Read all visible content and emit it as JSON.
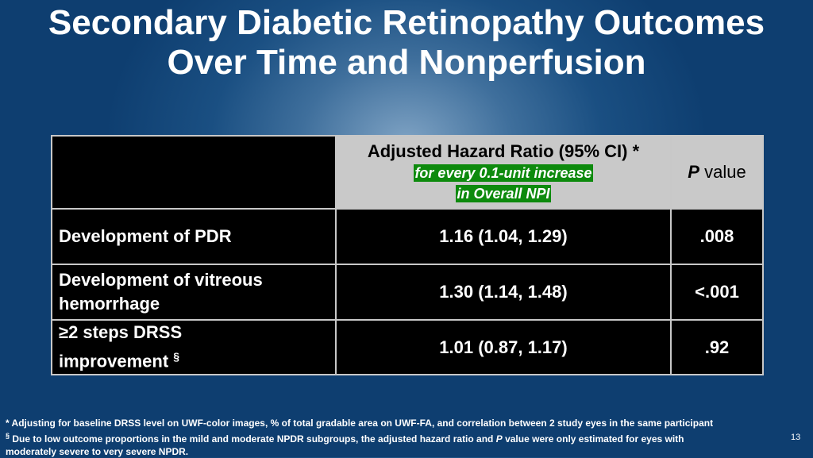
{
  "title": {
    "line1": "Secondary Diabetic Retinopathy Outcomes",
    "line2": "Over Time and Nonperfusion"
  },
  "table": {
    "header": {
      "hr_title": "Adjusted Hazard Ratio (95% CI) *",
      "hr_sub1": "for every 0.1-unit increase",
      "hr_sub2": "in Overall NPI",
      "p_italic": "P",
      "p_rest": " value"
    },
    "rows": [
      {
        "label_line1": "Development of PDR",
        "label_line2": "",
        "sup": "",
        "hr": "1.16 (1.04, 1.29)",
        "p": ".008"
      },
      {
        "label_line1": "Development of vitreous",
        "label_line2": "hemorrhage",
        "sup": "",
        "hr": "1.30 (1.14, 1.48)",
        "p": "<.001"
      },
      {
        "label_line1": "≥2 steps DRSS",
        "label_line2": "improvement ",
        "sup": "§",
        "hr": "1.01 (0.87, 1.17)",
        "p": ".92"
      }
    ]
  },
  "footnotes": {
    "line1": "* Adjusting for baseline DRSS level on UWF-color images, % of total gradable area on UWF-FA, and correlation between 2 study eyes in the same participant",
    "line2_sym": "§",
    "line2_a": " Due to low outcome proportions in the mild and moderate NPDR subgroups, the adjusted hazard ratio and ",
    "line2_p": "P",
    "line2_b": " value were only estimated for eyes with",
    "line3": "moderately severe to very severe NPDR."
  },
  "slide_number": "13",
  "colors": {
    "highlight_green": "#0d8a0d",
    "significant_p": "#ffff00",
    "header_gray": "#c9c9c9"
  }
}
